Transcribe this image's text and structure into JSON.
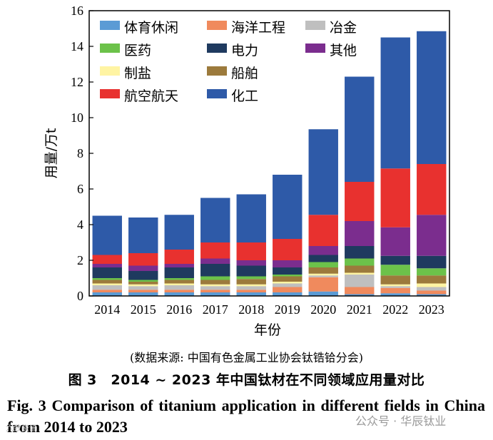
{
  "chart_data": {
    "type": "bar",
    "stacked": true,
    "ylabel": "用量/万t",
    "xlabel": "年份",
    "ylim": [
      0,
      16
    ],
    "yticks": [
      0,
      2,
      4,
      6,
      8,
      10,
      12,
      14,
      16
    ],
    "categories": [
      "2014",
      "2015",
      "2016",
      "2017",
      "2018",
      "2019",
      "2020",
      "2021",
      "2022",
      "2023"
    ],
    "series": [
      {
        "name": "体育休闲",
        "color": "#5b9bd5",
        "values": [
          0.2,
          0.2,
          0.2,
          0.2,
          0.2,
          0.2,
          0.25,
          0.1,
          0.15,
          0.1
        ]
      },
      {
        "name": "海洋工程",
        "color": "#f08a5d",
        "values": [
          0.15,
          0.15,
          0.15,
          0.15,
          0.15,
          0.3,
          0.8,
          0.4,
          0.3,
          0.2
        ]
      },
      {
        "name": "冶金",
        "color": "#bfbfbf",
        "values": [
          0.25,
          0.2,
          0.25,
          0.2,
          0.2,
          0.2,
          0.1,
          0.7,
          0.1,
          0.2
        ]
      },
      {
        "name": "制盐",
        "color": "#fff4a3",
        "values": [
          0.1,
          0.1,
          0.1,
          0.1,
          0.1,
          0.1,
          0.1,
          0.1,
          0.1,
          0.2
        ]
      },
      {
        "name": "船舶",
        "color": "#9c7a3c",
        "values": [
          0.2,
          0.15,
          0.2,
          0.25,
          0.3,
          0.3,
          0.35,
          0.4,
          0.5,
          0.45
        ]
      },
      {
        "name": "医药",
        "color": "#6cc24a",
        "values": [
          0.1,
          0.1,
          0.1,
          0.2,
          0.15,
          0.1,
          0.3,
          0.4,
          0.6,
          0.4
        ]
      },
      {
        "name": "电力",
        "color": "#1f3a5f",
        "values": [
          0.6,
          0.5,
          0.6,
          0.7,
          0.6,
          0.4,
          0.4,
          0.7,
          0.5,
          0.7
        ]
      },
      {
        "name": "其他",
        "color": "#7b2d8e",
        "values": [
          0.2,
          0.3,
          0.2,
          0.3,
          0.3,
          0.4,
          0.5,
          1.4,
          1.6,
          2.3
        ]
      },
      {
        "name": "航空航天",
        "color": "#e8312f",
        "values": [
          0.5,
          0.7,
          0.8,
          0.9,
          1.0,
          1.2,
          1.75,
          2.2,
          3.3,
          2.85
        ]
      },
      {
        "name": "化工",
        "color": "#2e5aa8",
        "values": [
          2.2,
          2.0,
          1.95,
          2.5,
          2.7,
          3.6,
          4.8,
          5.9,
          7.35,
          7.45
        ]
      }
    ],
    "legend": {
      "position": "top-left",
      "rows": [
        [
          "体育休闲",
          "海洋工程",
          "冶金"
        ],
        [
          "医药",
          "电力",
          "其他"
        ],
        [
          "制盐",
          "船舶"
        ],
        [
          "航空航天",
          "化工"
        ]
      ]
    }
  },
  "captions": {
    "source": "(数据来源: 中国有色金属工业协会钛锆铪分会)",
    "figure_cn": "图 3　2014 ~ 2023 年中国钛材在不同领域应用量对比",
    "figure_en": "Fig. 3  Comparison of titanium application in different fields in China from 2014 to 2023"
  },
  "watermarks": {
    "left": "六致资讯",
    "right": "公众号 · 华辰钛业"
  }
}
